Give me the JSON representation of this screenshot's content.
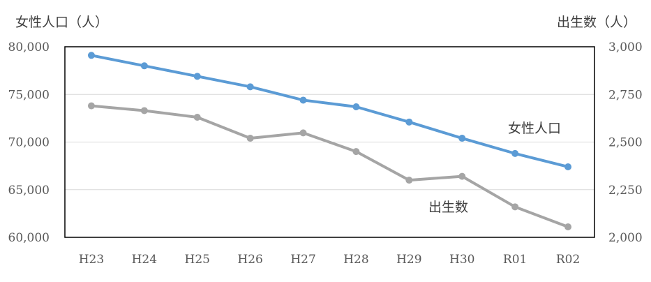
{
  "chart_data": {
    "type": "line",
    "categories": [
      "H23",
      "H24",
      "H25",
      "H26",
      "H27",
      "H28",
      "H29",
      "H30",
      "R01",
      "R02"
    ],
    "left_axis": {
      "title": "女性人口（人）",
      "ylim": [
        60000,
        80000
      ],
      "ticks": [
        "60,000",
        "65,000",
        "70,000",
        "75,000",
        "80,000"
      ],
      "tick_values": [
        60000,
        65000,
        70000,
        75000,
        80000
      ]
    },
    "right_axis": {
      "title": "出生数（人）",
      "ylim": [
        2000,
        3000
      ],
      "ticks": [
        "2,000",
        "2,250",
        "2,500",
        "2,750",
        "3,000"
      ],
      "tick_values": [
        2000,
        2250,
        2500,
        2750,
        3000
      ]
    },
    "series": [
      {
        "name": "女性人口",
        "axis": "left",
        "color": "#5b9bd5",
        "values": [
          79100,
          78000,
          76900,
          75800,
          74400,
          73700,
          72100,
          70400,
          68800,
          67400
        ]
      },
      {
        "name": "出生数",
        "axis": "right",
        "color": "#a5a5a5",
        "values": [
          2690,
          2665,
          2630,
          2520,
          2548,
          2450,
          2300,
          2320,
          2160,
          2055
        ]
      }
    ],
    "grid": true,
    "legend": "inline labels"
  }
}
